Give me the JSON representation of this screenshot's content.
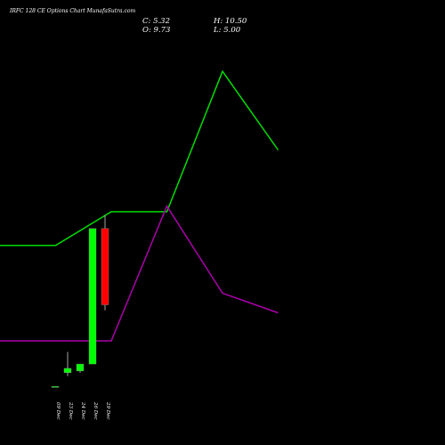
{
  "header": {
    "title": "IRFC 128 CE Options Chart MunafaSutra.com"
  },
  "ohlc": {
    "close": "C: 5.32",
    "open": "O: 9.73",
    "high": "H: 10.50",
    "low": "L: 5.00"
  },
  "colors": {
    "background": "#000000",
    "up": "#00ff00",
    "down": "#ff0000",
    "line_green": "#00dd00",
    "line_purple": "#aa00aa"
  },
  "chart_data": {
    "type": "candlestick",
    "categories": [
      "09 Dec",
      "23 Dec",
      "24 Dec",
      "26 Dec",
      "29 Dec"
    ],
    "candles": [
      {
        "date": "09 Dec",
        "open": 0.6,
        "high": 0.62,
        "low": 0.58,
        "close": 0.61
      },
      {
        "date": "23 Dec",
        "open": 1.4,
        "high": 2.6,
        "low": 1.2,
        "close": 1.65
      },
      {
        "date": "24 Dec",
        "open": 1.5,
        "high": 1.9,
        "low": 1.4,
        "close": 1.9
      },
      {
        "date": "26 Dec",
        "open": 1.9,
        "high": 9.73,
        "low": 1.9,
        "close": 9.73
      },
      {
        "date": "29 Dec",
        "open": 9.73,
        "high": 10.5,
        "low": 5.0,
        "close": 5.32
      }
    ],
    "overlay_lines": [
      {
        "color": "green",
        "x": [
          0,
          1,
          2,
          3,
          4,
          5
        ],
        "values": [
          210,
          210,
          211.2,
          211.2,
          216.2,
          213.4
        ]
      },
      {
        "color": "purple",
        "x": [
          0,
          1,
          2,
          3,
          4,
          5
        ],
        "values": [
          206.6,
          206.6,
          206.6,
          211.4,
          208.3,
          207.6
        ]
      }
    ],
    "candle_ylim": [
      0,
      11
    ],
    "overlay_ylim": [
      204,
      217
    ],
    "grid": false
  }
}
